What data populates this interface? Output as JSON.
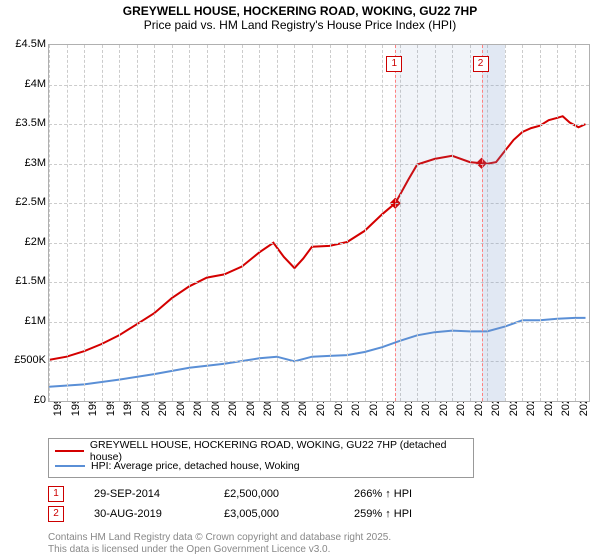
{
  "title": "GREYWELL HOUSE, HOCKERING ROAD, WOKING, GU22 7HP",
  "subtitle": "Price paid vs. HM Land Registry's House Price Index (HPI)",
  "chart": {
    "type": "line",
    "plot_bg": "#ffffff",
    "grid_color": "#cccccc",
    "border_color": "#b0b0b0",
    "x_start": 1995.0,
    "x_end": 2025.8,
    "xtick_years": [
      1995,
      1996,
      1997,
      1998,
      1999,
      2000,
      2001,
      2002,
      2003,
      2004,
      2005,
      2006,
      2007,
      2008,
      2009,
      2010,
      2011,
      2012,
      2013,
      2014,
      2015,
      2016,
      2017,
      2018,
      2019,
      2020,
      2021,
      2022,
      2023,
      2024,
      2025
    ],
    "y_min": 0,
    "y_max": 4500000,
    "ytick_values": [
      0,
      500000,
      1000000,
      1500000,
      2000000,
      2500000,
      3000000,
      3500000,
      4000000,
      4500000
    ],
    "ytick_labels": [
      "£0",
      "£500K",
      "£1M",
      "£1.5M",
      "£2M",
      "£2.5M",
      "£3M",
      "£3.5M",
      "£4M",
      "£4.5M"
    ],
    "shading": [
      {
        "from": 2014.75,
        "to": 2019.67,
        "color": "rgba(120,150,200,0.10)"
      },
      {
        "from": 2019.67,
        "to": 2021.0,
        "color": "rgba(120,150,200,0.22)"
      }
    ],
    "series": [
      {
        "name": "GREYWELL HOUSE, HOCKERING ROAD, WOKING, GU22 7HP (detached house)",
        "color": "#d40000",
        "width": 2,
        "data": [
          [
            1995.0,
            520000
          ],
          [
            1996.0,
            560000
          ],
          [
            1997.0,
            630000
          ],
          [
            1998.0,
            720000
          ],
          [
            1999.0,
            830000
          ],
          [
            2000.0,
            970000
          ],
          [
            2001.0,
            1110000
          ],
          [
            2002.0,
            1300000
          ],
          [
            2003.0,
            1450000
          ],
          [
            2004.0,
            1560000
          ],
          [
            2005.0,
            1600000
          ],
          [
            2006.0,
            1700000
          ],
          [
            2007.0,
            1880000
          ],
          [
            2007.8,
            2000000
          ],
          [
            2008.4,
            1820000
          ],
          [
            2009.0,
            1680000
          ],
          [
            2009.5,
            1800000
          ],
          [
            2010.0,
            1950000
          ],
          [
            2011.0,
            1960000
          ],
          [
            2012.0,
            2010000
          ],
          [
            2013.0,
            2150000
          ],
          [
            2014.0,
            2360000
          ],
          [
            2014.75,
            2500000
          ],
          [
            2015.5,
            2800000
          ],
          [
            2016.0,
            2990000
          ],
          [
            2017.0,
            3060000
          ],
          [
            2018.0,
            3100000
          ],
          [
            2019.0,
            3020000
          ],
          [
            2019.67,
            3005000
          ],
          [
            2020.0,
            3000000
          ],
          [
            2020.5,
            3020000
          ],
          [
            2021.0,
            3160000
          ],
          [
            2021.5,
            3300000
          ],
          [
            2022.0,
            3400000
          ],
          [
            2022.5,
            3450000
          ],
          [
            2023.0,
            3480000
          ],
          [
            2023.5,
            3550000
          ],
          [
            2024.0,
            3580000
          ],
          [
            2024.3,
            3600000
          ],
          [
            2024.7,
            3520000
          ],
          [
            2025.2,
            3460000
          ],
          [
            2025.6,
            3500000
          ]
        ]
      },
      {
        "name": "HPI: Average price, detached house, Woking",
        "color": "#5a8fd6",
        "width": 2,
        "data": [
          [
            1995.0,
            180000
          ],
          [
            1997.0,
            210000
          ],
          [
            1999.0,
            270000
          ],
          [
            2001.0,
            340000
          ],
          [
            2003.0,
            420000
          ],
          [
            2005.0,
            470000
          ],
          [
            2007.0,
            540000
          ],
          [
            2008.0,
            560000
          ],
          [
            2009.0,
            500000
          ],
          [
            2010.0,
            560000
          ],
          [
            2011.0,
            570000
          ],
          [
            2012.0,
            580000
          ],
          [
            2013.0,
            620000
          ],
          [
            2014.0,
            680000
          ],
          [
            2015.0,
            760000
          ],
          [
            2016.0,
            830000
          ],
          [
            2017.0,
            870000
          ],
          [
            2018.0,
            890000
          ],
          [
            2019.0,
            880000
          ],
          [
            2020.0,
            880000
          ],
          [
            2021.0,
            940000
          ],
          [
            2022.0,
            1020000
          ],
          [
            2023.0,
            1020000
          ],
          [
            2024.0,
            1040000
          ],
          [
            2025.0,
            1050000
          ],
          [
            2025.6,
            1050000
          ]
        ]
      }
    ],
    "markers": [
      {
        "label": "1",
        "x": 2014.75,
        "y": 2500000,
        "line_color": "#ff8080",
        "box_top": 60
      },
      {
        "label": "2",
        "x": 2019.67,
        "y": 3005000,
        "line_color": "#ff8080",
        "box_top": 60
      }
    ]
  },
  "legend": {
    "items": [
      {
        "color": "#d40000",
        "label": "GREYWELL HOUSE, HOCKERING ROAD, WOKING, GU22 7HP (detached house)"
      },
      {
        "color": "#5a8fd6",
        "label": "HPI: Average price, detached house, Woking"
      }
    ]
  },
  "sales": [
    {
      "n": "1",
      "date": "29-SEP-2014",
      "price": "£2,500,000",
      "pct": "266% ↑ HPI"
    },
    {
      "n": "2",
      "date": "30-AUG-2019",
      "price": "£3,005,000",
      "pct": "259% ↑ HPI"
    }
  ],
  "footnote_l1": "Contains HM Land Registry data © Crown copyright and database right 2025.",
  "footnote_l2": "This data is licensed under the Open Government Licence v3.0."
}
